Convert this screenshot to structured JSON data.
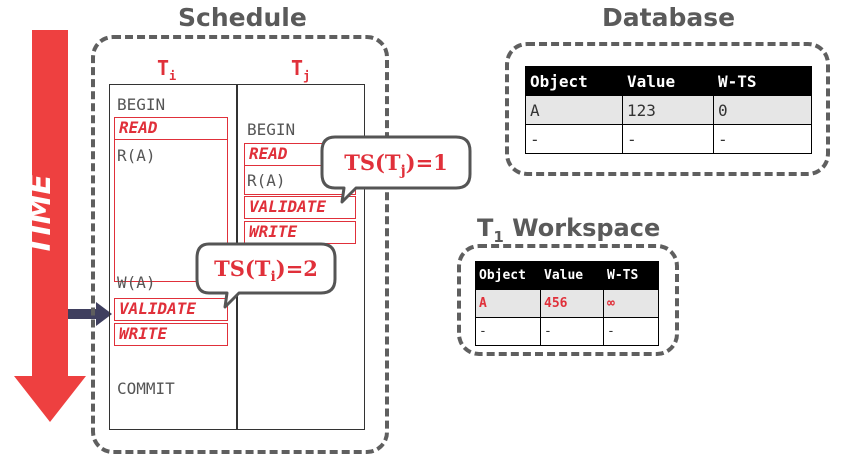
{
  "time_label": "TIME",
  "schedule": {
    "title": "Schedule",
    "ti_label": "T",
    "ti_sub": "i",
    "tj_label": "T",
    "tj_sub": "j",
    "ti_ops": {
      "begin": "BEGIN",
      "read": "READ",
      "ra": "R(A)",
      "wa": "W(A)",
      "validate": "VALIDATE",
      "write": "WRITE",
      "commit": "COMMIT"
    },
    "tj_ops": {
      "begin": "BEGIN",
      "read": "READ",
      "ra": "R(A)",
      "validate": "VALIDATE",
      "write": "WRITE"
    },
    "callout_tj": {
      "prefix": "TS(T",
      "sub": "j",
      "suffix": ")=1"
    },
    "callout_ti": {
      "prefix": "TS(T",
      "sub": "i",
      "suffix": ")=2"
    }
  },
  "database": {
    "title": "Database",
    "columns": [
      "Object",
      "Value",
      "W-TS"
    ],
    "rows": [
      [
        "A",
        "123",
        "0"
      ],
      [
        "-",
        "-",
        "-"
      ]
    ]
  },
  "workspace": {
    "title_main": "T",
    "title_sub": "1",
    "title_rest": " Workspace",
    "columns": [
      "Object",
      "Value",
      "W-TS"
    ],
    "rows": [
      [
        "A",
        "456",
        "∞"
      ],
      [
        "-",
        "-",
        "-"
      ]
    ]
  },
  "colors": {
    "accent": "#e0303a",
    "arrow": "#ee4040",
    "pointer": "#3f3f5f",
    "heading": "#5a5a5a"
  }
}
